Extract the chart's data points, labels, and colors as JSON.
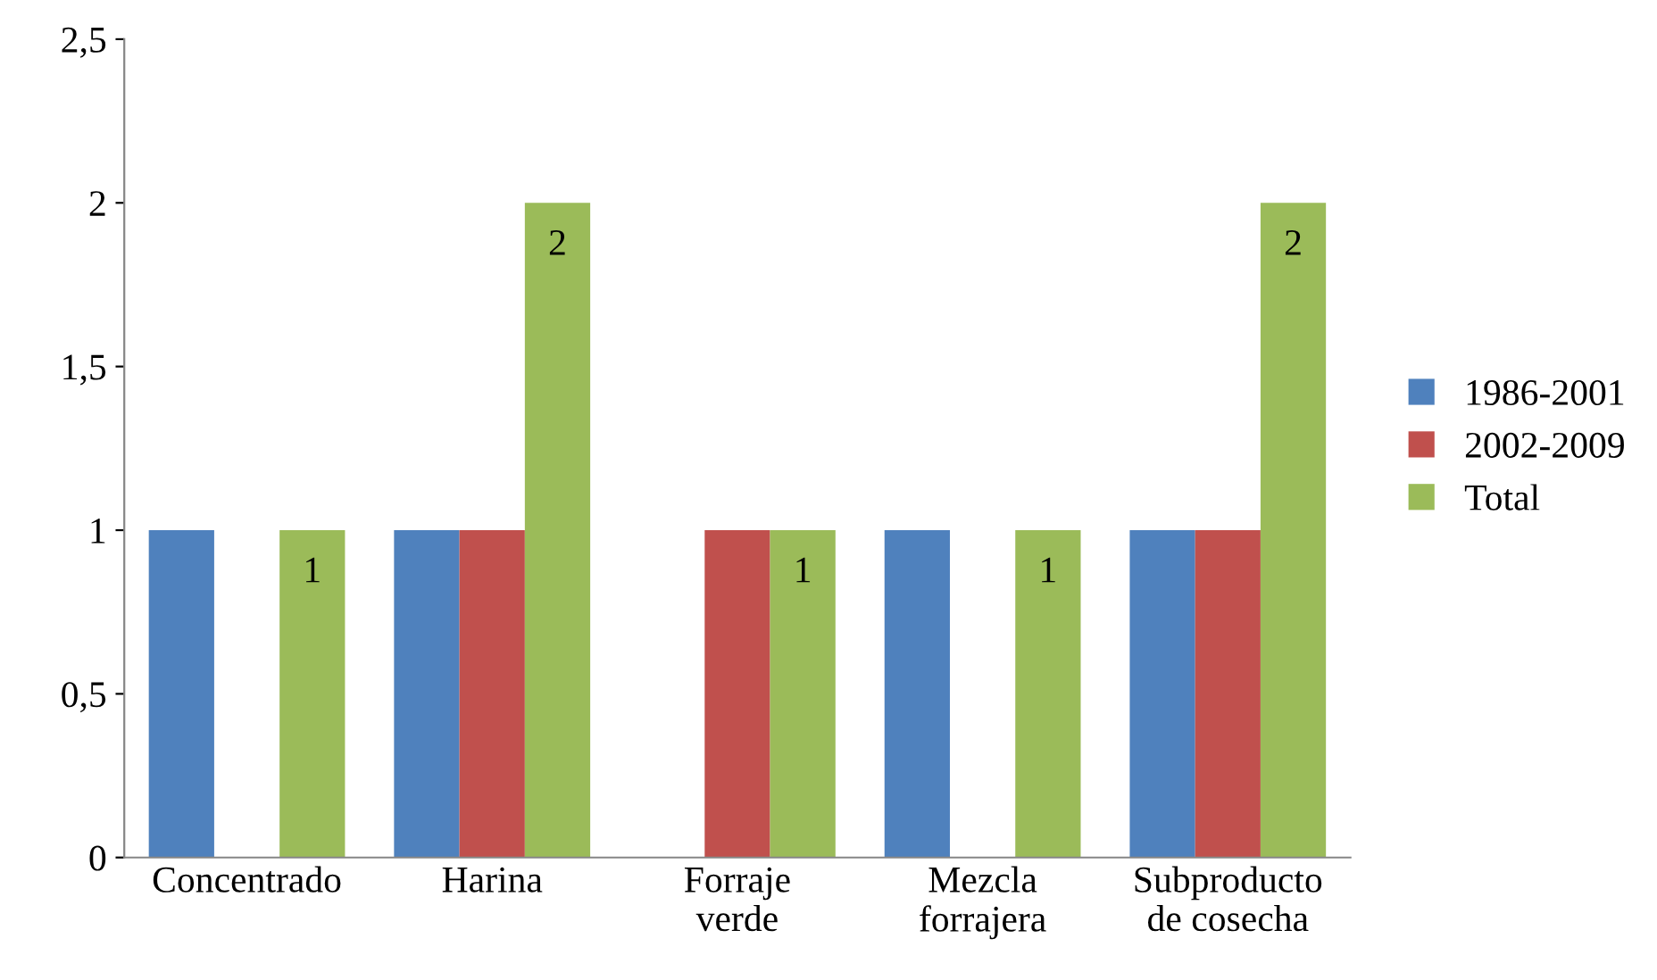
{
  "chart_data": {
    "type": "bar",
    "categories": [
      "Concentrado",
      "Harina",
      "Forraje verde",
      "Mezcla forrajera",
      "Subproducto de cosecha"
    ],
    "series": [
      {
        "name": "1986-2001",
        "color": "#4f81bd",
        "values": [
          1,
          1,
          null,
          1,
          1
        ]
      },
      {
        "name": "2002-2009",
        "color": "#c0504d",
        "values": [
          null,
          1,
          1,
          null,
          1
        ]
      },
      {
        "name": "Total",
        "color": "#9bbb59",
        "values": [
          1,
          2,
          1,
          1,
          2
        ],
        "value_labels": [
          "1",
          "2",
          "1",
          "1",
          "2"
        ]
      }
    ],
    "ylim": [
      0,
      2.5
    ],
    "yticks": [
      0,
      {
        "value": 0.5,
        "label": "0,5"
      },
      1,
      {
        "value": 1.5,
        "label": "1,5"
      },
      2,
      {
        "value": 2.5,
        "label": "2,5"
      }
    ],
    "grid": false,
    "legend": "right"
  }
}
